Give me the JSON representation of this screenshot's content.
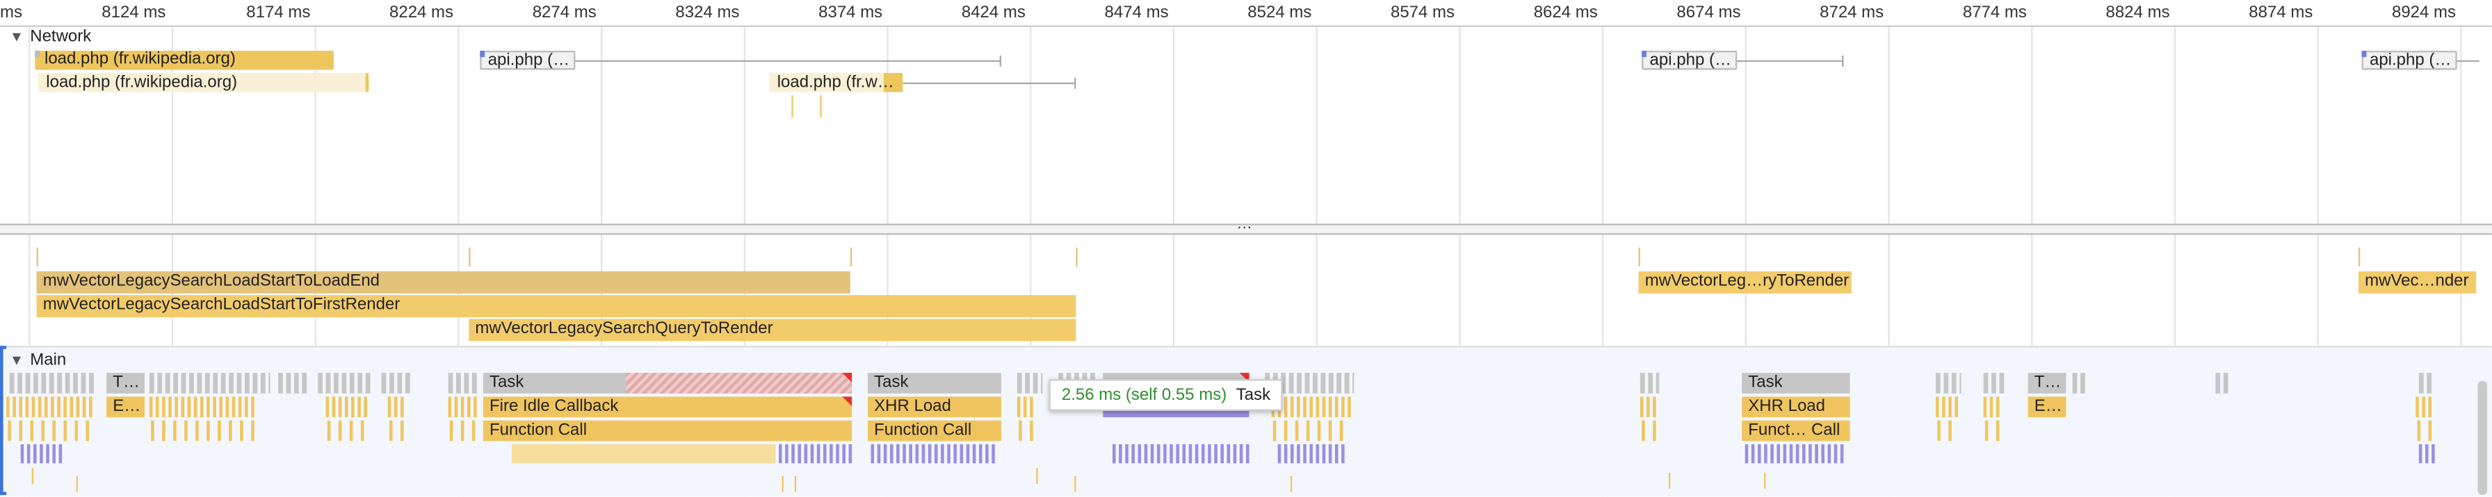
{
  "ruler": {
    "ticks": [
      "ms",
      "8124 ms",
      "8174 ms",
      "8224 ms",
      "8274 ms",
      "8324 ms",
      "8374 ms",
      "8424 ms",
      "8474 ms",
      "8524 ms",
      "8574 ms",
      "8624 ms",
      "8674 ms",
      "8724 ms",
      "8774 ms",
      "8824 ms",
      "8874 ms",
      "8924 ms"
    ]
  },
  "network": {
    "title": "Network",
    "requests": [
      "load.php (fr.wikipedia.org)",
      "load.php (fr.wikipedia.org)",
      "api.php (…",
      "load.php (fr.w…",
      "api.php (…",
      "api.php (…"
    ]
  },
  "splitter": {
    "glyph": "…"
  },
  "timings": {
    "items": [
      "mwVectorLegacySearchLoadStartToLoadEnd",
      "mwVectorLegacySearchLoadStartToFirstRender",
      "mwVectorLegacySearchQueryToRender",
      "mwVectorLeg…ryToRender",
      "mwVec…nder"
    ]
  },
  "main": {
    "title": "Main",
    "tasks": {
      "t1": "T…",
      "e1": "E…",
      "task": "Task",
      "fire_idle": "Fire Idle Callback",
      "function_call": "Function Call",
      "task2": "Task",
      "xhr": "XHR Load",
      "function_call2": "Function Call",
      "task3": "Task",
      "xhr3": "XHR Load",
      "funct3": "Funct… Call",
      "t4": "T…",
      "e4": "E…"
    },
    "tooltip": {
      "time": "2.56 ms (self 0.55 ms)",
      "name": "Task"
    }
  },
  "colors": {
    "task_gray": "#c6c6c6",
    "scripting_yellow": "#f0c55f",
    "timing_tan": "#e3c27a",
    "network_script": "#eec65e",
    "network_light": "#faf0d6",
    "gc_purple": "#9a8ee0",
    "tooltip_green": "#2f8f2f"
  }
}
